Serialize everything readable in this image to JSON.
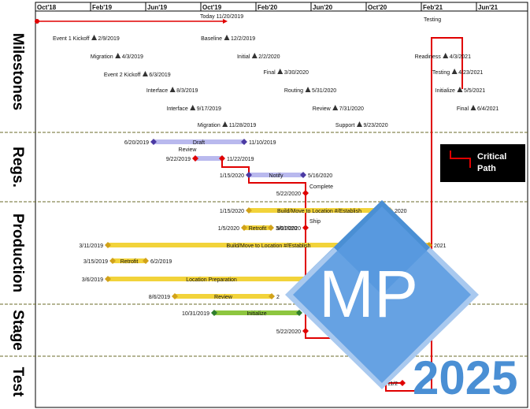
{
  "chart_data": {
    "type": "gantt",
    "x_ticks": [
      "Oct'18",
      "Feb'19",
      "Jun'19",
      "Oct'19",
      "Feb'20",
      "Jun'20",
      "Oct'20",
      "Feb'21",
      "Jun'21"
    ],
    "today_label": "Today 11/20/2019",
    "lanes": [
      "Milestones",
      "Regs.",
      "Production",
      "Stage",
      "Test"
    ],
    "milestones": [
      {
        "name": "Event 1 Kickoff",
        "date": "2/9/2019"
      },
      {
        "name": "Migration",
        "date": "4/3/2019"
      },
      {
        "name": "Event 2 Kickoff",
        "date": "6/3/2019"
      },
      {
        "name": "Interface",
        "date": "8/3/2019"
      },
      {
        "name": "Interface",
        "date": "9/17/2019"
      },
      {
        "name": "Migration",
        "date": "11/28/2019"
      },
      {
        "name": "Baseline",
        "date": "12/2/2019"
      },
      {
        "name": "Initial",
        "date": "2/2/2020"
      },
      {
        "name": "Final",
        "date": "3/30/2020"
      },
      {
        "name": "Routing",
        "date": "5/31/2020"
      },
      {
        "name": "Review",
        "date": "7/31/2020"
      },
      {
        "name": "Support",
        "date": "9/23/2020"
      },
      {
        "name": "Readiness",
        "date": "4/3/2021"
      },
      {
        "name": "Testing",
        "date": "4/23/2021"
      },
      {
        "name": "Initialize",
        "date": "5/5/2021"
      },
      {
        "name": "Final",
        "date": "6/4/2021"
      }
    ],
    "tasks": [
      {
        "lane": "Regs.",
        "name": "Draft",
        "start": "6/20/2019",
        "end": "11/10/2019"
      },
      {
        "lane": "Regs.",
        "name": "Review",
        "start": "9/22/2019",
        "end": "11/22/2019"
      },
      {
        "lane": "Regs.",
        "name": "Notify",
        "start": "1/15/2020",
        "end": "5/16/2020"
      },
      {
        "lane": "Regs.",
        "name": "Complete",
        "date": "5/22/2020"
      },
      {
        "lane": "Production",
        "name": "Build/Move to Location #/Establish",
        "start": "1/15/2020",
        "end": "2020"
      },
      {
        "lane": "Production",
        "name": "Retrofit",
        "start": "1/5/2020",
        "end": "3/6/2020"
      },
      {
        "lane": "Production",
        "name": "Ship",
        "date": "5/21/2020"
      },
      {
        "lane": "Production",
        "name": "Build/Move to Location #/Establish",
        "start": "3/11/2019",
        "end": "2021"
      },
      {
        "lane": "Production",
        "name": "Retrofit",
        "start": "3/15/2019",
        "end": "6/2/2019"
      },
      {
        "lane": "Production",
        "name": "Location Preparation",
        "start": "3/6/2019",
        "end": ""
      },
      {
        "lane": "Production",
        "name": "Review",
        "start": "8/6/2019",
        "end": "2"
      },
      {
        "lane": "Stage",
        "name": "Initialize",
        "start": "10/31/2019",
        "end": ""
      },
      {
        "lane": "Stage",
        "name": "",
        "date": "5/22/2020"
      },
      {
        "lane": "Test",
        "name": "",
        "date": "11/2"
      }
    ],
    "critical_path_label": [
      "Critical",
      "Path"
    ],
    "logo": {
      "mark": "MP",
      "year": "2025"
    }
  },
  "colors": {
    "critical": "#e00000",
    "lane_rule": "#6b6b2a",
    "bar_blue": "#b9b9ee",
    "bar_gold": "#f2d33a",
    "bar_green": "#8dc63f",
    "logo_dark": "#4a8fd4",
    "logo_light": "#a9c9ef"
  }
}
